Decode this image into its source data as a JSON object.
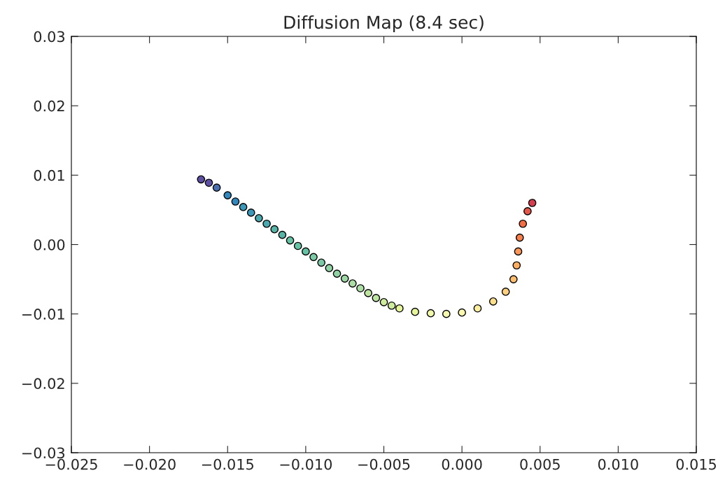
{
  "chart_data": {
    "type": "scatter",
    "title": "Diffusion Map (8.4 sec)",
    "x": [
      -0.0167,
      -0.0162,
      -0.0157,
      -0.015,
      -0.0145,
      -0.014,
      -0.0135,
      -0.013,
      -0.0125,
      -0.012,
      -0.0115,
      -0.011,
      -0.0105,
      -0.01,
      -0.0095,
      -0.009,
      -0.0085,
      -0.008,
      -0.0075,
      -0.007,
      -0.0065,
      -0.006,
      -0.0055,
      -0.005,
      -0.0045,
      -0.004,
      -0.003,
      -0.002,
      -0.001,
      0.0,
      0.001,
      0.002,
      0.0028,
      0.0033,
      0.0035,
      0.0036,
      0.0037,
      0.0039,
      0.0042,
      0.0045
    ],
    "values": [
      0.0094,
      0.0089,
      0.0082,
      0.0071,
      0.0062,
      0.0054,
      0.0046,
      0.0038,
      0.003,
      0.0022,
      0.0014,
      0.0006,
      -0.0002,
      -0.001,
      -0.0018,
      -0.0026,
      -0.0034,
      -0.0042,
      -0.0049,
      -0.0056,
      -0.0063,
      -0.007,
      -0.0077,
      -0.0083,
      -0.0088,
      -0.0092,
      -0.0097,
      -0.0099,
      -0.01,
      -0.0098,
      -0.0092,
      -0.0082,
      -0.0068,
      -0.005,
      -0.003,
      -0.001,
      0.001,
      0.003,
      0.0048,
      0.006
    ],
    "colors": [
      "#5e4fa2",
      "#5e4fa2",
      "#4a6fb0",
      "#3288bd",
      "#3288bd",
      "#3a98b9",
      "#3a98b9",
      "#4aa8af",
      "#4aa8af",
      "#57b5a8",
      "#57b5a8",
      "#66c2a5",
      "#66c2a5",
      "#66c2a5",
      "#7ccaa5",
      "#7ccaa5",
      "#8fd2a4",
      "#8fd2a4",
      "#9dd8a4",
      "#abdda4",
      "#abdda4",
      "#bee5a0",
      "#bee5a0",
      "#cfec9d",
      "#cfec9d",
      "#e6f598",
      "#e6f598",
      "#f1f9a9",
      "#f6faae",
      "#fbf8b0",
      "#fdefa0",
      "#fee08b",
      "#fed07e",
      "#fdbf6f",
      "#fdae61",
      "#fa9656",
      "#f67f4b",
      "#f46d43",
      "#e55749",
      "#d53e4f"
    ],
    "marker": "circle",
    "grid": false,
    "xlim": [
      -0.025,
      0.015
    ],
    "xticks": [
      {
        "value": -0.025,
        "label": "−0.025"
      },
      {
        "value": -0.02,
        "label": "−0.020"
      },
      {
        "value": -0.015,
        "label": "−0.015"
      },
      {
        "value": -0.01,
        "label": "−0.010"
      },
      {
        "value": -0.005,
        "label": "−0.005"
      },
      {
        "value": 0,
        "label": "0.000"
      },
      {
        "value": 0.005,
        "label": "0.005"
      },
      {
        "value": 0.01,
        "label": "0.010"
      },
      {
        "value": 0.015,
        "label": "0.015"
      }
    ],
    "ylim": [
      -0.03,
      0.03
    ],
    "yticks": [
      {
        "value": -0.03,
        "label": "−0.03"
      },
      {
        "value": -0.02,
        "label": "−0.02"
      },
      {
        "value": -0.01,
        "label": "−0.01"
      },
      {
        "value": 0,
        "label": "0.00"
      },
      {
        "value": 0.01,
        "label": "0.01"
      },
      {
        "value": 0.02,
        "label": "0.02"
      },
      {
        "value": 0.03,
        "label": "0.03"
      }
    ]
  }
}
